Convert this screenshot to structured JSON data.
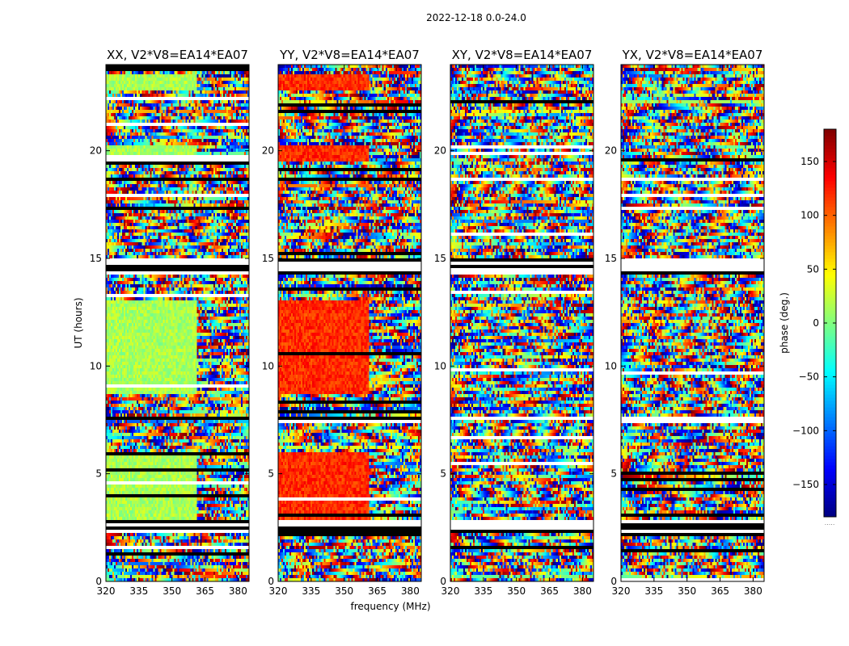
{
  "chart_data": {
    "type": "heatmap",
    "title": "2022-12-18 0.0-24.0",
    "xlabel": "frequency (MHz)",
    "ylabel": "UT (hours)",
    "xlim": [
      320,
      385
    ],
    "ylim": [
      0,
      24
    ],
    "x_ticks": [
      320,
      335,
      350,
      365,
      380
    ],
    "y_ticks": [
      0,
      5,
      10,
      15,
      20
    ],
    "colorbar": {
      "label": "phase (deg.)",
      "range": [
        -180,
        180
      ],
      "ticks": [
        -150,
        -100,
        -50,
        0,
        50,
        100,
        150
      ],
      "tick_labels": [
        "−150",
        "−100",
        "−50",
        "0",
        "50",
        "100",
        "150"
      ],
      "colormap": "jet",
      "footnote": "....."
    },
    "panels": [
      {
        "title": "XX, V2*V8=EA14*EA07",
        "coherent_phase_deg": 15
      },
      {
        "title": "YY, V2*V8=EA14*EA07",
        "coherent_phase_deg": 120
      },
      {
        "title": "XY, V2*V8=EA14*EA07",
        "coherent_phase_deg": null
      },
      {
        "title": "YX, V2*V8=EA14*EA07",
        "coherent_phase_deg": null
      }
    ],
    "flagged_ut_ranges": [
      [
        2.2,
        2.5
      ],
      [
        2.6,
        2.8
      ],
      [
        7.5,
        7.6
      ],
      [
        14.2,
        15.0
      ],
      [
        18.6,
        18.8
      ]
    ],
    "coherent_ut_ranges": [
      [
        2.8,
        6.0
      ],
      [
        8.7,
        13.0
      ],
      [
        19.5,
        20.3
      ],
      [
        22.8,
        23.5
      ]
    ]
  }
}
